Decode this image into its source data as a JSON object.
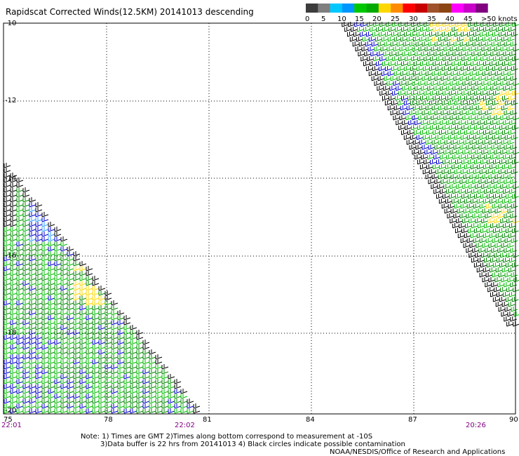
{
  "title": "Rapidscat Corrected Winds(12.5KM) 20141013 descending",
  "legend": {
    "labels": [
      "0",
      "5",
      "10",
      "15",
      "20",
      "25",
      "30",
      "35",
      "40",
      "45",
      ">50 knots"
    ],
    "colors": [
      "#3c3c3c",
      "#7f7f7f",
      "#00c8ff",
      "#0096ff",
      "#00c800",
      "#00aa00",
      "#ffd700",
      "#ff8c00",
      "#ff0000",
      "#c80000",
      "#a0522d",
      "#8b4513",
      "#ff00ff",
      "#c800c8",
      "#800080"
    ]
  },
  "axes": {
    "lat_labels": [
      "-10",
      "-12",
      "-14",
      "-16",
      "-18",
      "-20"
    ],
    "lon_labels": [
      "75",
      "78",
      "81",
      "84",
      "87",
      "90"
    ],
    "lon_range": [
      75,
      90
    ],
    "lat_range": [
      -10,
      -20
    ]
  },
  "times": [
    "22:01",
    "22:02",
    "20:26"
  ],
  "notes": {
    "line1": "Note: 1) Times are GMT 2)Times along bottom correspond to measurement at -10S",
    "line2": "3)Data buffer is 22 hrs from 20141013 4) Black circles indicate possible contamination",
    "credit": "NOAA/NESDIS/Office of Research and Applications"
  },
  "wind_colors": {
    "calm": "#000000",
    "light": "#0000cc",
    "light_blue": "#3399ff",
    "moderate": "#00bb00",
    "moderate_dark": "#008800",
    "strong": "#ffd700"
  }
}
